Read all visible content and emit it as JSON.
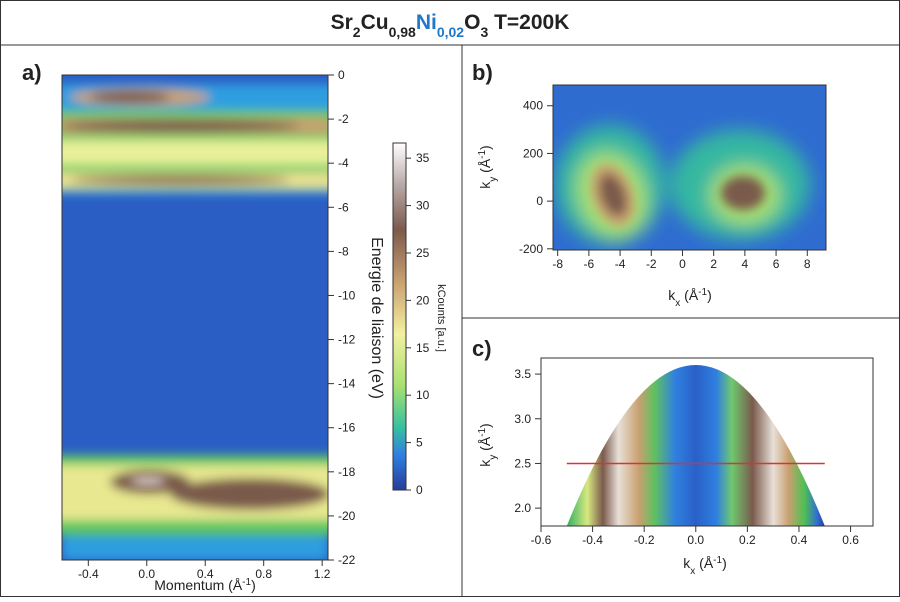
{
  "header": {
    "title_parts": [
      "Sr",
      "2",
      "Cu",
      "0,98",
      "Ni",
      "0,02",
      "O",
      "3",
      " T=200K"
    ]
  },
  "chart_data": [
    {
      "type": "heatmap",
      "panel_label": "a)",
      "x_label": [
        "Momentum (Å",
        "-1",
        ")"
      ],
      "y_label": "Energie de liaison (eV)",
      "xlim": [
        -0.58,
        1.24
      ],
      "xticks": [
        -0.4,
        {
          "value": 0,
          "label": "0.0"
        },
        0.4,
        0.8,
        1.2
      ],
      "ylim": [
        -22,
        0
      ],
      "yticks": [
        0,
        -2,
        -4,
        -6,
        -8,
        -10,
        -12,
        -14,
        -16,
        -18,
        -20,
        -22
      ],
      "colorbar": {
        "label": "kCounts [a.u.]",
        "lim": [
          0,
          36.6
        ],
        "ticks": [
          0,
          5,
          10,
          15,
          20,
          25,
          30,
          35
        ]
      }
    },
    {
      "type": "heatmap",
      "panel_label": "b)",
      "x_label": [
        "k",
        "x",
        " (Å",
        "-1",
        ")"
      ],
      "y_label": [
        "k",
        "y",
        " (Å",
        "-1",
        ")"
      ],
      "xlim": [
        -8.3,
        9.2
      ],
      "xticks": [
        -8,
        -6,
        -4,
        -2,
        0,
        2,
        4,
        6,
        8
      ],
      "ylim": [
        -205,
        487
      ],
      "yticks": [
        -200,
        0,
        200,
        400
      ]
    },
    {
      "type": "heatmap",
      "panel_label": "c)",
      "x_label": [
        "k",
        "x",
        " (Å",
        "-1",
        ")"
      ],
      "y_label": [
        "k",
        "y",
        " (Å",
        "-1",
        ")"
      ],
      "xlim": [
        -0.6,
        0.687
      ],
      "xticks": [
        -0.6,
        -0.4,
        -0.2,
        {
          "value": 0,
          "label": "0.0"
        },
        0.2,
        0.4,
        0.6
      ],
      "ylim": [
        1.8,
        3.68
      ],
      "yticks": [
        {
          "value": 2,
          "label": "2.0"
        },
        2.5,
        {
          "value": 3,
          "label": "3.0"
        },
        3.5
      ],
      "cut_line": {
        "x": [
          -0.5,
          0.5
        ],
        "y": [
          2.5,
          2.5
        ],
        "color": "#e03030"
      }
    }
  ]
}
